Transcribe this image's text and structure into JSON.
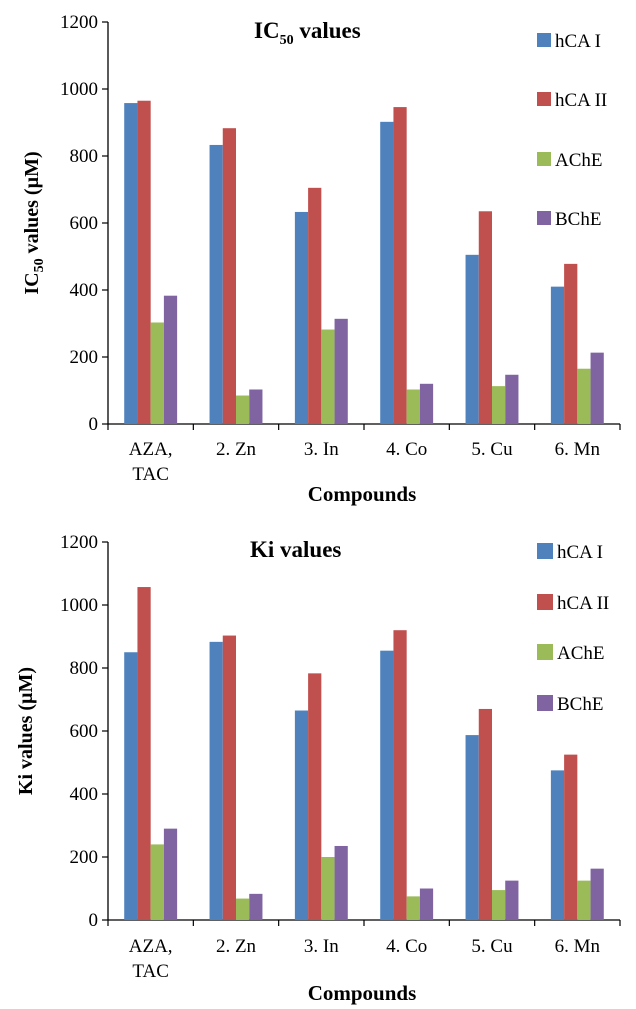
{
  "chart_data": [
    {
      "type": "bar",
      "title": "IC",
      "title_sub": "50",
      "title_rest": " values",
      "ylabel": "IC",
      "ylabel_sub": "50",
      "ylabel_rest": " values (µM)",
      "xlabel": "Compounds",
      "ylim": [
        0,
        1200
      ],
      "yticks": [
        0,
        200,
        400,
        600,
        800,
        1000,
        1200
      ],
      "categories": [
        [
          "AZA,",
          "TAC"
        ],
        [
          "2. Zn"
        ],
        [
          "3. In"
        ],
        [
          "4. Co"
        ],
        [
          "5. Cu"
        ],
        [
          "6. Mn"
        ]
      ],
      "legend_position": "right",
      "series": [
        {
          "name": "hCA I",
          "color": "#4f81bd",
          "values": [
            958,
            833,
            633,
            902,
            505,
            410
          ]
        },
        {
          "name": "hCA II",
          "color": "#c0504d",
          "values": [
            965,
            883,
            705,
            946,
            635,
            478
          ]
        },
        {
          "name": "AChE",
          "color": "#9bbb59",
          "values": [
            303,
            85,
            282,
            103,
            113,
            165
          ]
        },
        {
          "name": "BChE",
          "color": "#8064a2",
          "values": [
            383,
            103,
            314,
            120,
            147,
            213
          ]
        }
      ]
    },
    {
      "type": "bar",
      "title": "Ki values",
      "ylabel": "Ki values (µM)",
      "xlabel": "Compounds",
      "ylim": [
        0,
        1200
      ],
      "yticks": [
        0,
        200,
        400,
        600,
        800,
        1000,
        1200
      ],
      "categories": [
        [
          "AZA,",
          "TAC"
        ],
        [
          "2. Zn"
        ],
        [
          "3. In"
        ],
        [
          "4. Co"
        ],
        [
          "5. Cu"
        ],
        [
          "6. Mn"
        ]
      ],
      "legend_position": "right",
      "series": [
        {
          "name": "hCA I",
          "color": "#4f81bd",
          "values": [
            850,
            883,
            665,
            855,
            587,
            475
          ]
        },
        {
          "name": "hCA II",
          "color": "#c0504d",
          "values": [
            1057,
            903,
            783,
            920,
            670,
            525
          ]
        },
        {
          "name": "AChE",
          "color": "#9bbb59",
          "values": [
            240,
            68,
            200,
            75,
            95,
            125
          ]
        },
        {
          "name": "BChE",
          "color": "#8064a2",
          "values": [
            290,
            83,
            235,
            100,
            125,
            163
          ]
        }
      ]
    }
  ]
}
